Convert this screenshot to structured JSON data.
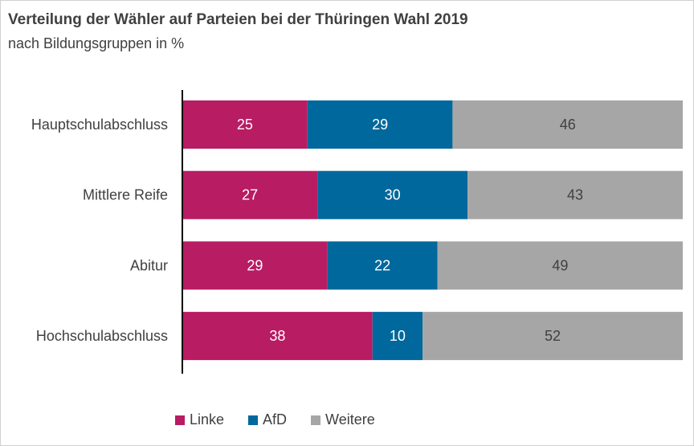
{
  "title": "Verteilung der Wähler auf Parteien bei der Thüringen Wahl 2019",
  "subtitle": "nach Bildungsgruppen in %",
  "chart_data": {
    "type": "bar",
    "orientation": "horizontal",
    "stacked": true,
    "categories": [
      "Hauptschulabschluss",
      "Mittlere Reife",
      "Abitur",
      "Hochschulabschluss"
    ],
    "series": [
      {
        "name": "Linke",
        "color": "#b81c63",
        "values": [
          25,
          27,
          29,
          38
        ]
      },
      {
        "name": "AfD",
        "color": "#00689c",
        "values": [
          29,
          30,
          22,
          10
        ]
      },
      {
        "name": "Weitere",
        "color": "#a6a6a6",
        "values": [
          46,
          43,
          49,
          52
        ]
      }
    ],
    "label_colors": [
      "#ffffff",
      "#ffffff",
      "#404040"
    ],
    "xlim": [
      0,
      100
    ],
    "grid": false,
    "legend_position": "bottom"
  }
}
